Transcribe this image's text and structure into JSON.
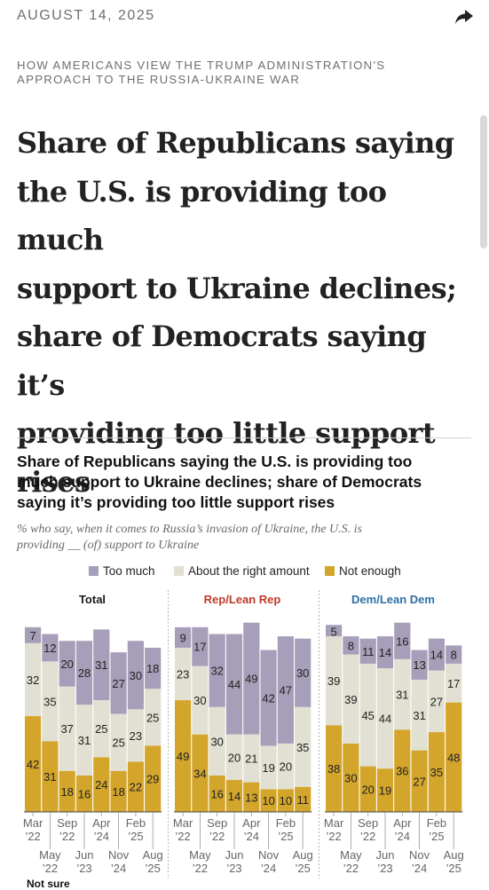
{
  "header": {
    "date": "AUGUST 14, 2025",
    "share_icon": "share-arrow-icon"
  },
  "article": {
    "kicker_line1": "HOW AMERICANS VIEW THE TRUMP ADMINISTRATION'S",
    "kicker_line2": "APPROACH TO THE RUSSIA-UKRAINE WAR",
    "headline_lines": [
      "Share of Republicans saying",
      "the U.S. is providing too much",
      "support to Ukraine declines;",
      "share of Democrats saying it’s",
      "providing too little support",
      "rises"
    ]
  },
  "colors": {
    "too_much": "#a79fb9",
    "right": "#e1e0d2",
    "not_enough": "#d3a52b",
    "rep": "#c0392b",
    "dem": "#2f6fa5",
    "text": "#1a1a1a"
  },
  "chart_data": {
    "type": "bar",
    "stacked": true,
    "title_lines": [
      "Share of Republicans saying the U.S. is providing too",
      "much support to Ukraine declines; share of Democrats",
      "saying it’s providing too little support rises"
    ],
    "subtitle_lines": [
      "% who say, when it comes to Russia’s invasion of Ukraine, the U.S. is",
      "providing __ (of) support to Ukraine"
    ],
    "legend": [
      "Too much",
      "About the right amount",
      "Not enough"
    ],
    "panels": [
      {
        "title": "Total",
        "too_much": [
          7,
          12,
          20,
          28,
          31,
          27,
          30,
          18
        ],
        "right": [
          32,
          35,
          37,
          31,
          25,
          25,
          23,
          25
        ],
        "not_enough": [
          42,
          31,
          18,
          16,
          24,
          18,
          22,
          29
        ]
      },
      {
        "title": "Rep/Lean Rep",
        "too_much": [
          9,
          17,
          32,
          44,
          49,
          42,
          47,
          30
        ],
        "right": [
          23,
          30,
          30,
          20,
          21,
          19,
          20,
          35
        ],
        "not_enough": [
          49,
          34,
          16,
          14,
          13,
          10,
          10,
          11
        ]
      },
      {
        "title": "Dem/Lean Dem",
        "too_much": [
          5,
          8,
          11,
          14,
          16,
          13,
          14,
          8
        ],
        "right": [
          39,
          39,
          45,
          44,
          31,
          31,
          27,
          17
        ],
        "not_enough": [
          38,
          30,
          20,
          19,
          36,
          27,
          35,
          48
        ]
      }
    ],
    "x_labels_top": [
      [
        "Mar",
        "’22"
      ],
      [
        "Sep",
        "’22"
      ],
      [
        "Apr",
        "’24"
      ],
      [
        "Feb",
        "’25"
      ]
    ],
    "x_labels_bottom": [
      [
        "May",
        "’22"
      ],
      [
        "Jun",
        "’23"
      ],
      [
        "Nov",
        "’24"
      ],
      [
        "Aug",
        "’25"
      ]
    ],
    "footnote": "Not sure"
  }
}
